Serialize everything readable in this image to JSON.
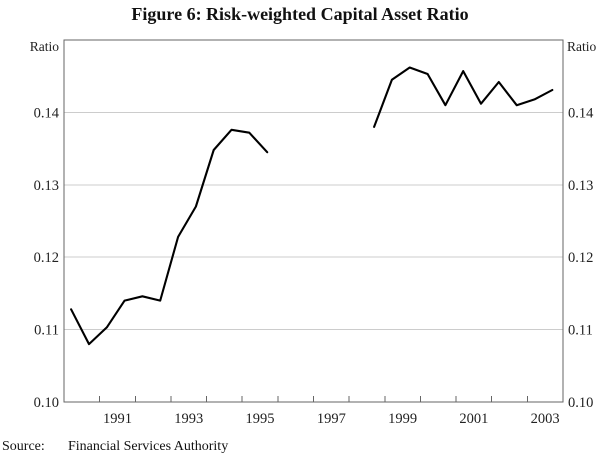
{
  "title": "Figure 6: Risk-weighted Capital Asset Ratio",
  "source": {
    "label": "Source:",
    "value": "Financial Services Authority"
  },
  "chart_data": {
    "type": "line",
    "title": "Figure 6: Risk-weighted Capital Asset Ratio",
    "y_axis_label_left": "Ratio",
    "y_axis_label_right": "Ratio",
    "xlim": [
      1990,
      2004
    ],
    "ylim": [
      0.1,
      0.15
    ],
    "y_tick_values": [
      0.1,
      0.11,
      0.12,
      0.13,
      0.14
    ],
    "y_tick_labels": [
      "0.10",
      "0.11",
      "0.12",
      "0.13",
      "0.14"
    ],
    "y_gridlines": [
      0.11,
      0.12,
      0.13,
      0.14
    ],
    "x_tick_years": [
      1991,
      1992,
      1993,
      1994,
      1995,
      1996,
      1997,
      1998,
      1999,
      2000,
      2001,
      2002,
      2003
    ],
    "x_axis_labels": [
      "1991",
      "1993",
      "1995",
      "1997",
      "1999",
      "2001",
      "2003"
    ],
    "grid": true,
    "legend_position": "none",
    "line_color": "#000000",
    "grid_color": "#cccccc",
    "axis_color": "#666666",
    "series": [
      {
        "x": [
          1990.2,
          1990.7,
          1991.2,
          1991.7,
          1992.2,
          1992.7,
          1993.2,
          1993.7,
          1994.2,
          1994.7,
          1995.2,
          1995.7
        ],
        "y": [
          0.1128,
          0.108,
          0.1103,
          0.114,
          0.1146,
          0.114,
          0.1228,
          0.127,
          0.1348,
          0.1376,
          0.1372,
          0.1345
        ]
      },
      {
        "x": [
          1998.7,
          1999.2,
          1999.7,
          2000.2,
          2000.7,
          2001.2,
          2001.7,
          2002.2,
          2002.7,
          2003.2,
          2003.7
        ],
        "y": [
          0.138,
          0.1445,
          0.1462,
          0.1453,
          0.141,
          0.1457,
          0.1412,
          0.1442,
          0.141,
          0.1418,
          0.1431
        ]
      }
    ],
    "source": "Financial Services Authority"
  }
}
